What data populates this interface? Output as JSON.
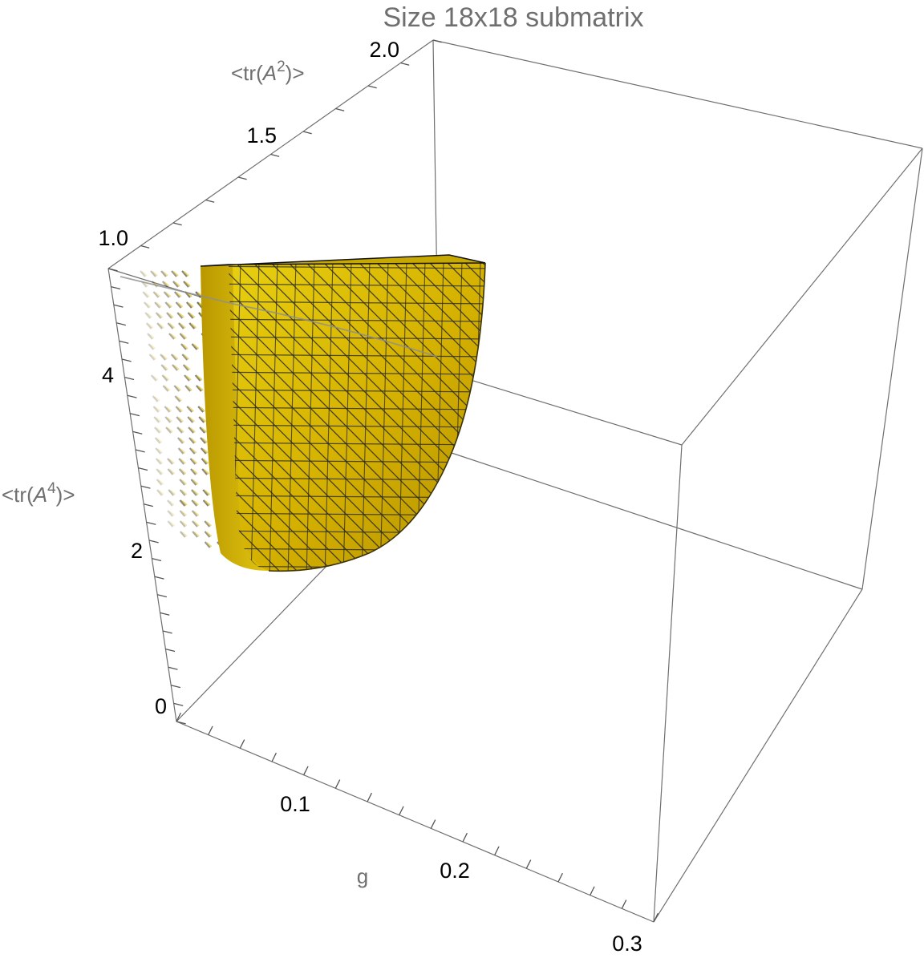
{
  "chart_data": {
    "type": "surface3d",
    "title": "Size 18x18 submatrix",
    "axes": {
      "x": {
        "label": "g",
        "range": [
          0,
          0.3
        ],
        "ticks": [
          "0.1",
          "0.2",
          "0.3"
        ],
        "tick_values": [
          0.1,
          0.2,
          0.3
        ]
      },
      "y": {
        "label_prefix": "<tr(",
        "label_var": "A",
        "label_sup": "2",
        "label_suffix": ")>",
        "range": [
          1.0,
          2.0
        ],
        "ticks": [
          "1.0",
          "1.5",
          "2.0"
        ],
        "tick_values": [
          1.0,
          1.5,
          2.0
        ]
      },
      "z": {
        "label_prefix": "<tr(",
        "label_var": "A",
        "label_sup": "4",
        "label_suffix": ")>",
        "range": [
          0,
          5
        ],
        "ticks": [
          "0",
          "2",
          "4"
        ],
        "tick_values": [
          0,
          2,
          4
        ]
      }
    },
    "surface": {
      "color": "#d4b400",
      "highlight": "#e8d21a",
      "shadow": "#8a7100",
      "mesh_color": "#2a2a2a",
      "mesh": true,
      "boxed": true
    }
  }
}
